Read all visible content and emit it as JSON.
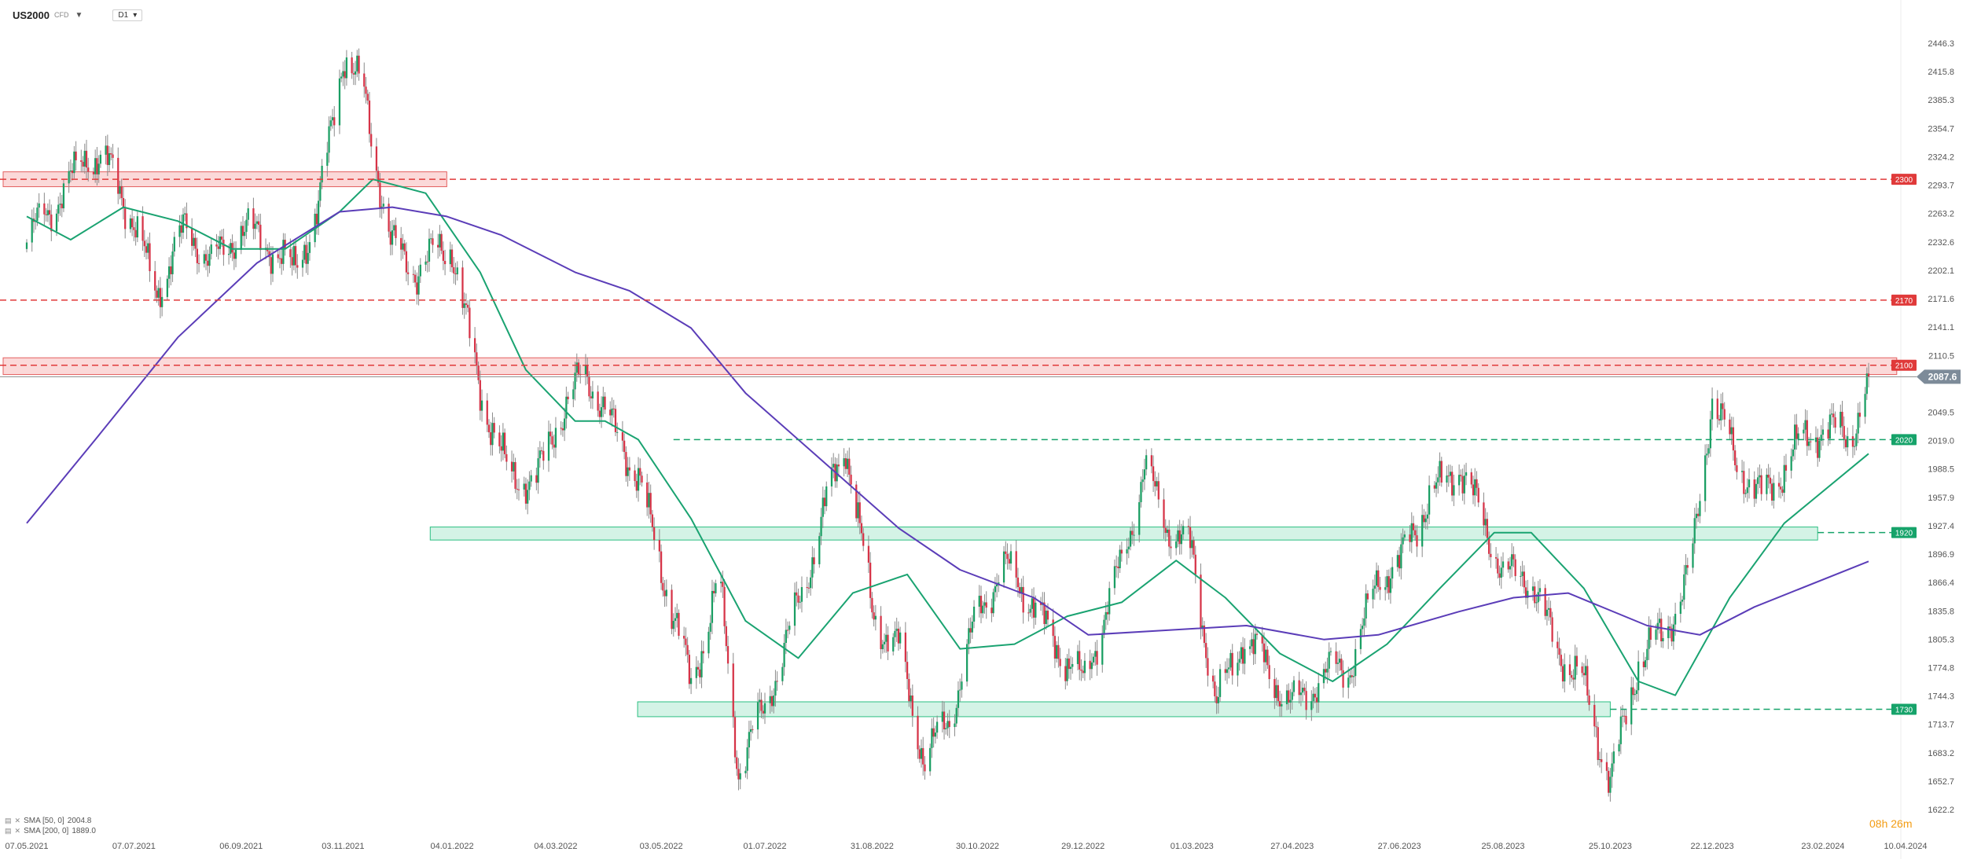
{
  "header": {
    "symbol": "US2000",
    "symbol_suffix": "CFD",
    "timeframe": "D1",
    "dropdown_icon": "caret-down-icon"
  },
  "legend": [
    {
      "label": "SMA [50, 0]",
      "value": "2004.8",
      "color": "#1aa371"
    },
    {
      "label": "SMA [200, 0]",
      "value": "1889.0",
      "color": "#5b3db8"
    }
  ],
  "countdown": {
    "hours": "08",
    "h_unit": "h",
    "minutes": "26",
    "m_unit": "m"
  },
  "chart_data": {
    "type": "candlestick",
    "title": "",
    "xlabel": "",
    "ylabel": "",
    "ylim": [
      1622.2,
      2446.3
    ],
    "y_ticks": [
      "2446.3",
      "2415.8",
      "2385.3",
      "2354.7",
      "2324.2",
      "2293.7",
      "2263.2",
      "2232.6",
      "2202.1",
      "2171.6",
      "2141.1",
      "2110.5",
      "2080.0",
      "2049.5",
      "2019.0",
      "1988.5",
      "1957.9",
      "1927.4",
      "1896.9",
      "1866.4",
      "1835.8",
      "1805.3",
      "1774.8",
      "1744.3",
      "1713.7",
      "1683.2",
      "1652.7",
      "1622.2"
    ],
    "x_ticks": [
      "07.05.2021",
      "07.07.2021",
      "06.09.2021",
      "03.11.2021",
      "04.01.2022",
      "04.03.2022",
      "03.05.2022",
      "01.07.2022",
      "31.08.2022",
      "30.10.2022",
      "29.12.2022",
      "01.03.2023",
      "27.04.2023",
      "27.06.2023",
      "25.08.2023",
      "25.10.2023",
      "22.12.2023",
      "23.02.2024",
      "10.04.2024"
    ],
    "price_path": [
      [
        "07.05.2021",
        2225
      ],
      [
        "2021-05-25",
        2285
      ],
      [
        "2021-06-10",
        2330
      ],
      [
        "2021-06-25",
        2300
      ],
      [
        "07.07.2021",
        2255
      ],
      [
        "2021-07-20",
        2185
      ],
      [
        "2021-08-05",
        2240
      ],
      [
        "2021-08-20",
        2210
      ],
      [
        "06.09.2021",
        2255
      ],
      [
        "2021-09-20",
        2225
      ],
      [
        "2021-10-05",
        2200
      ],
      [
        "2021-10-20",
        2275
      ],
      [
        "03.11.2021",
        2430
      ],
      [
        "2021-11-15",
        2385
      ],
      [
        "2021-11-30",
        2240
      ],
      [
        "2021-12-15",
        2200
      ],
      [
        "04.01.2022",
        2225
      ],
      [
        "2022-01-20",
        2080
      ],
      [
        "2022-02-05",
        1975
      ],
      [
        "2022-02-20",
        1970
      ],
      [
        "04.03.2022",
        2045
      ],
      [
        "2022-03-20",
        2090
      ],
      [
        "2022-04-05",
        2030
      ],
      [
        "2022-04-20",
        1990
      ],
      [
        "03.05.2022",
        1880
      ],
      [
        "2022-05-20",
        1750
      ],
      [
        "2022-06-05",
        1880
      ],
      [
        "2022-06-16",
        1665
      ],
      [
        "01.07.2022",
        1725
      ],
      [
        "2022-07-20",
        1850
      ],
      [
        "2022-08-05",
        1950
      ],
      [
        "2022-08-16",
        2010
      ],
      [
        "31.08.2022",
        1840
      ],
      [
        "2022-09-15",
        1800
      ],
      [
        "2022-09-30",
        1665
      ],
      [
        "2022-10-15",
        1730
      ],
      [
        "30.10.2022",
        1840
      ],
      [
        "2022-11-15",
        1875
      ],
      [
        "2022-11-30",
        1850
      ],
      [
        "2022-12-15",
        1800
      ],
      [
        "29.12.2022",
        1750
      ],
      [
        "2023-01-15",
        1860
      ],
      [
        "2023-02-02",
        1990
      ],
      [
        "2023-02-15",
        1920
      ],
      [
        "01.03.2023",
        1900
      ],
      [
        "2023-03-15",
        1740
      ],
      [
        "2023-03-30",
        1800
      ],
      [
        "2023-04-15",
        1770
      ],
      [
        "27.04.2023",
        1740
      ],
      [
        "2023-05-15",
        1760
      ],
      [
        "2023-05-30",
        1775
      ],
      [
        "2023-06-15",
        1880
      ],
      [
        "27.06.2023",
        1880
      ],
      [
        "2023-07-15",
        1960
      ],
      [
        "2023-07-31",
        2000
      ],
      [
        "2023-08-15",
        1920
      ],
      [
        "25.08.2023",
        1870
      ],
      [
        "2023-09-10",
        1880
      ],
      [
        "2023-09-25",
        1790
      ],
      [
        "2023-10-10",
        1750
      ],
      [
        "25.10.2023",
        1660
      ],
      [
        "2023-11-10",
        1780
      ],
      [
        "2023-11-25",
        1805
      ],
      [
        "2023-12-10",
        1890
      ],
      [
        "22.12.2023",
        2070
      ],
      [
        "2024-01-05",
        1985
      ],
      [
        "2024-01-20",
        1960
      ],
      [
        "2024-02-05",
        2010
      ],
      [
        "23.02.2024",
        2025
      ],
      [
        "2024-03-10",
        2030
      ],
      [
        "2024-03-20",
        2087.6
      ]
    ],
    "last_price": "2087.6",
    "levels": [
      {
        "value": 2300,
        "label": "2300",
        "color": "#e03a3a"
      },
      {
        "value": 2170,
        "label": "2170",
        "color": "#e03a3a"
      },
      {
        "value": 2100,
        "label": "2100",
        "color": "#e03a3a"
      },
      {
        "value": 2020,
        "label": "2020",
        "color": "#16a36a"
      },
      {
        "value": 1920,
        "label": "1920",
        "color": "#16a36a"
      },
      {
        "value": 1730,
        "label": "1730",
        "color": "#16a36a"
      }
    ],
    "zones": [
      {
        "from": "07.05.2021",
        "to": "2022-01-01",
        "low": 2292,
        "high": 2308,
        "color": "red"
      },
      {
        "from": "07.05.2021",
        "to": "2024-04-05",
        "low": 2090,
        "high": 2108,
        "color": "red"
      },
      {
        "from": "2022-01-05",
        "to": "2024-02-20",
        "low": 1912,
        "high": 1926,
        "color": "green"
      },
      {
        "from": "03.05.2022",
        "to": "25.10.2023",
        "low": 1722,
        "high": 1738,
        "color": "green"
      }
    ],
    "series": [
      {
        "name": "SMA [50, 0]",
        "color": "#1aa371",
        "points": [
          [
            "07.05.2021",
            2260
          ],
          [
            "2021-06-01",
            2235
          ],
          [
            "2021-07-01",
            2270
          ],
          [
            "2021-08-01",
            2255
          ],
          [
            "2021-09-01",
            2225
          ],
          [
            "2021-10-01",
            2225
          ],
          [
            "2021-11-01",
            2265
          ],
          [
            "2021-11-20",
            2300
          ],
          [
            "2021-12-20",
            2285
          ],
          [
            "2022-01-20",
            2200
          ],
          [
            "2022-02-15",
            2095
          ],
          [
            "2022-03-15",
            2040
          ],
          [
            "2022-04-01",
            2040
          ],
          [
            "2022-04-20",
            2020
          ],
          [
            "2022-05-20",
            1935
          ],
          [
            "2022-06-20",
            1825
          ],
          [
            "2022-07-20",
            1785
          ],
          [
            "2022-08-20",
            1855
          ],
          [
            "2022-09-20",
            1875
          ],
          [
            "2022-10-20",
            1795
          ],
          [
            "2022-11-20",
            1800
          ],
          [
            "2022-12-20",
            1830
          ],
          [
            "2023-01-20",
            1845
          ],
          [
            "2023-02-20",
            1890
          ],
          [
            "2023-03-20",
            1850
          ],
          [
            "2023-04-20",
            1790
          ],
          [
            "2023-05-20",
            1760
          ],
          [
            "2023-06-20",
            1800
          ],
          [
            "2023-07-20",
            1860
          ],
          [
            "2023-08-20",
            1920
          ],
          [
            "2023-09-10",
            1920
          ],
          [
            "2023-10-10",
            1860
          ],
          [
            "2023-11-10",
            1760
          ],
          [
            "2023-12-01",
            1745
          ],
          [
            "2024-01-01",
            1850
          ],
          [
            "2024-02-01",
            1930
          ],
          [
            "2024-03-20",
            2004.8
          ]
        ]
      },
      {
        "name": "SMA [200, 0]",
        "color": "#5b3db8",
        "points": [
          [
            "07.05.2021",
            1930
          ],
          [
            "2021-06-15",
            2020
          ],
          [
            "2021-08-01",
            2130
          ],
          [
            "2021-09-15",
            2210
          ],
          [
            "2021-11-01",
            2265
          ],
          [
            "2021-12-01",
            2270
          ],
          [
            "2022-01-01",
            2260
          ],
          [
            "2022-02-01",
            2240
          ],
          [
            "2022-03-15",
            2200
          ],
          [
            "2022-04-15",
            2180
          ],
          [
            "2022-05-20",
            2140
          ],
          [
            "2022-06-20",
            2070
          ],
          [
            "2022-08-01",
            2000
          ],
          [
            "2022-09-15",
            1925
          ],
          [
            "2022-10-20",
            1880
          ],
          [
            "2022-12-01",
            1850
          ],
          [
            "2023-01-01",
            1810
          ],
          [
            "2023-02-15",
            1815
          ],
          [
            "2023-04-01",
            1820
          ],
          [
            "2023-05-15",
            1805
          ],
          [
            "2023-06-15",
            1810
          ],
          [
            "2023-07-31",
            1835
          ],
          [
            "2023-08-31",
            1850
          ],
          [
            "2023-10-01",
            1855
          ],
          [
            "2023-11-15",
            1820
          ],
          [
            "2023-12-15",
            1810
          ],
          [
            "2024-01-15",
            1840
          ],
          [
            "2024-03-20",
            1889.0
          ]
        ]
      }
    ],
    "grid": false
  }
}
